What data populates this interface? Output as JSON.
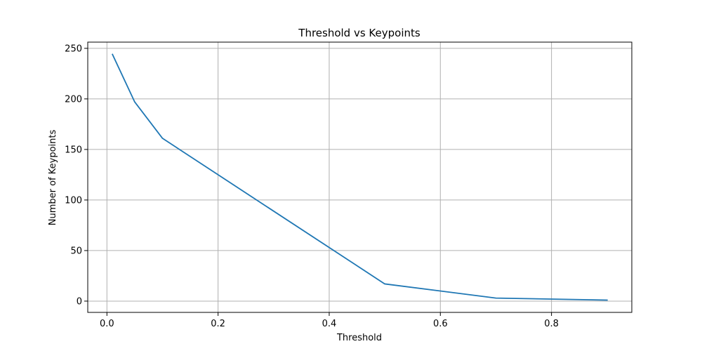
{
  "chart_data": {
    "type": "line",
    "title": "Threshold vs Keypoints",
    "xlabel": "Threshold",
    "ylabel": "Number of Keypoints",
    "xlim": [
      -0.0345,
      0.9445
    ],
    "ylim": [
      -11.15,
      256.15
    ],
    "xticks": [
      0.0,
      0.2,
      0.4,
      0.6,
      0.8
    ],
    "xtick_labels": [
      "0.0",
      "0.2",
      "0.4",
      "0.6",
      "0.8"
    ],
    "yticks": [
      0,
      50,
      100,
      150,
      200,
      250
    ],
    "ytick_labels": [
      "0",
      "50",
      "100",
      "150",
      "200",
      "250"
    ],
    "grid": true,
    "series": [
      {
        "color": "#1f77b4",
        "x": [
          0.01,
          0.05,
          0.1,
          0.5,
          0.7,
          0.9
        ],
        "y": [
          244,
          197,
          161,
          17,
          3,
          1
        ]
      }
    ]
  }
}
